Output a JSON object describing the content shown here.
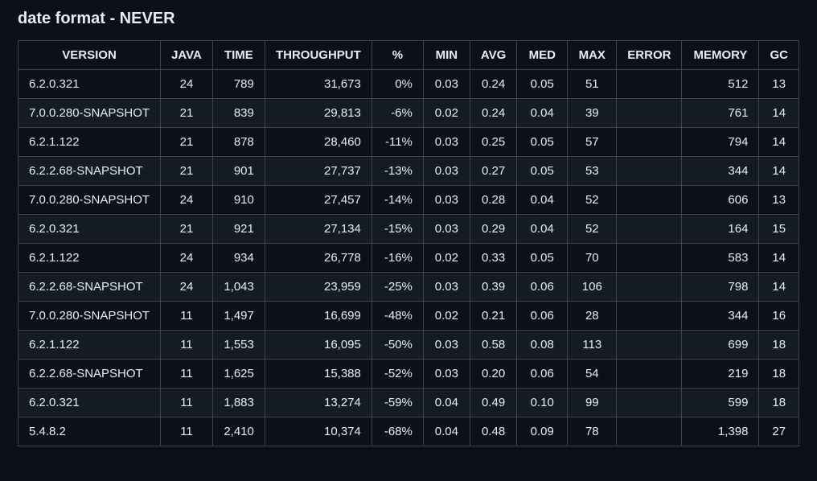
{
  "title": "date format - NEVER",
  "table": {
    "headers": [
      "VERSION",
      "JAVA",
      "TIME",
      "THROUGHPUT",
      "%",
      "MIN",
      "AVG",
      "MED",
      "MAX",
      "ERROR",
      "MEMORY",
      "GC"
    ],
    "rows": [
      [
        "6.2.0.321",
        "24",
        "789",
        "31,673",
        "0%",
        "0.03",
        "0.24",
        "0.05",
        "51",
        "",
        "512",
        "13"
      ],
      [
        "7.0.0.280-SNAPSHOT",
        "21",
        "839",
        "29,813",
        "-6%",
        "0.02",
        "0.24",
        "0.04",
        "39",
        "",
        "761",
        "14"
      ],
      [
        "6.2.1.122",
        "21",
        "878",
        "28,460",
        "-11%",
        "0.03",
        "0.25",
        "0.05",
        "57",
        "",
        "794",
        "14"
      ],
      [
        "6.2.2.68-SNAPSHOT",
        "21",
        "901",
        "27,737",
        "-13%",
        "0.03",
        "0.27",
        "0.05",
        "53",
        "",
        "344",
        "14"
      ],
      [
        "7.0.0.280-SNAPSHOT",
        "24",
        "910",
        "27,457",
        "-14%",
        "0.03",
        "0.28",
        "0.04",
        "52",
        "",
        "606",
        "13"
      ],
      [
        "6.2.0.321",
        "21",
        "921",
        "27,134",
        "-15%",
        "0.03",
        "0.29",
        "0.04",
        "52",
        "",
        "164",
        "15"
      ],
      [
        "6.2.1.122",
        "24",
        "934",
        "26,778",
        "-16%",
        "0.02",
        "0.33",
        "0.05",
        "70",
        "",
        "583",
        "14"
      ],
      [
        "6.2.2.68-SNAPSHOT",
        "24",
        "1,043",
        "23,959",
        "-25%",
        "0.03",
        "0.39",
        "0.06",
        "106",
        "",
        "798",
        "14"
      ],
      [
        "7.0.0.280-SNAPSHOT",
        "11",
        "1,497",
        "16,699",
        "-48%",
        "0.02",
        "0.21",
        "0.06",
        "28",
        "",
        "344",
        "16"
      ],
      [
        "6.2.1.122",
        "11",
        "1,553",
        "16,095",
        "-50%",
        "0.03",
        "0.58",
        "0.08",
        "113",
        "",
        "699",
        "18"
      ],
      [
        "6.2.2.68-SNAPSHOT",
        "11",
        "1,625",
        "15,388",
        "-52%",
        "0.03",
        "0.20",
        "0.06",
        "54",
        "",
        "219",
        "18"
      ],
      [
        "6.2.0.321",
        "11",
        "1,883",
        "13,274",
        "-59%",
        "0.04",
        "0.49",
        "0.10",
        "99",
        "",
        "599",
        "18"
      ],
      [
        "5.4.8.2",
        "11",
        "2,410",
        "10,374",
        "-68%",
        "0.04",
        "0.48",
        "0.09",
        "78",
        "",
        "1,398",
        "27"
      ]
    ]
  },
  "colors": {
    "background": "#0d1117",
    "row_alt": "#151b23",
    "border": "#3d444d",
    "text": "#e6edf3"
  }
}
